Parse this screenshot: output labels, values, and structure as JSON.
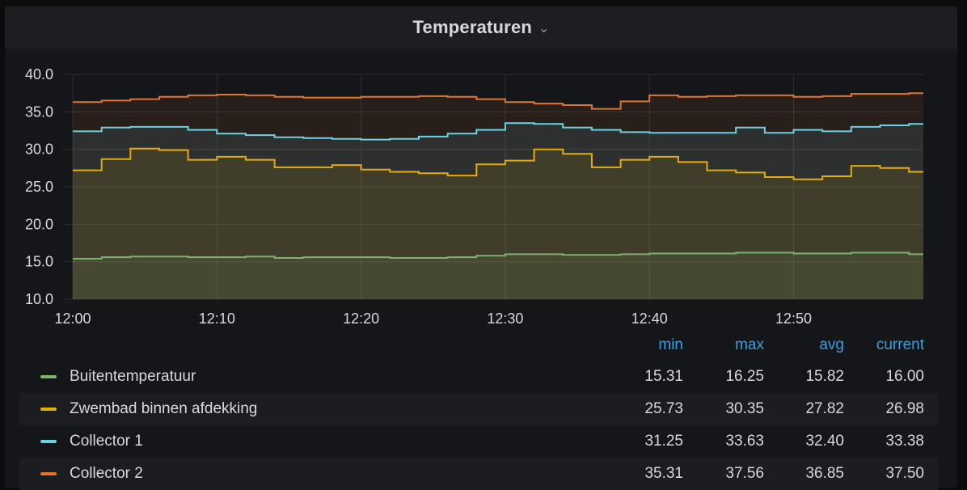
{
  "panel": {
    "title": "Temperaturen",
    "title_icon": "chevron-down-icon"
  },
  "chart_data": {
    "type": "area",
    "x": [
      "12:00",
      "12:02",
      "12:04",
      "12:06",
      "12:08",
      "12:10",
      "12:12",
      "12:14",
      "12:16",
      "12:18",
      "12:20",
      "12:22",
      "12:24",
      "12:26",
      "12:28",
      "12:30",
      "12:32",
      "12:34",
      "12:36",
      "12:38",
      "12:40",
      "12:42",
      "12:44",
      "12:46",
      "12:48",
      "12:50",
      "12:52",
      "12:54",
      "12:56",
      "12:58"
    ],
    "xticks": [
      "12:00",
      "12:10",
      "12:20",
      "12:30",
      "12:40",
      "12:50"
    ],
    "yticks": [
      "10.0",
      "15.0",
      "20.0",
      "25.0",
      "30.0",
      "35.0",
      "40.0"
    ],
    "ylim": [
      10,
      40
    ],
    "grid": true,
    "series": [
      {
        "name": "Collector 2",
        "color": "#e0752d",
        "values": [
          36.3,
          36.5,
          36.7,
          37.0,
          37.2,
          37.3,
          37.2,
          37.0,
          36.9,
          36.9,
          37.0,
          37.0,
          37.1,
          37.0,
          36.7,
          36.3,
          36.1,
          35.9,
          35.4,
          36.4,
          37.2,
          37.0,
          37.1,
          37.2,
          37.2,
          37.0,
          37.1,
          37.4,
          37.4,
          37.5
        ]
      },
      {
        "name": "Collector 1",
        "color": "#6ed0e0",
        "values": [
          32.4,
          32.9,
          33.0,
          33.0,
          32.6,
          32.1,
          31.9,
          31.6,
          31.5,
          31.4,
          31.3,
          31.4,
          31.7,
          32.1,
          32.6,
          33.5,
          33.4,
          32.9,
          32.6,
          32.3,
          32.2,
          32.2,
          32.2,
          32.9,
          32.2,
          32.6,
          32.4,
          33.0,
          33.2,
          33.4
        ]
      },
      {
        "name": "Zwembad binnen afdekking",
        "color": "#e5ac0e",
        "values": [
          27.2,
          28.7,
          30.1,
          29.9,
          28.6,
          29.0,
          28.6,
          27.6,
          27.6,
          27.9,
          27.3,
          27.0,
          26.8,
          26.5,
          28.0,
          28.5,
          30.0,
          29.4,
          27.6,
          28.6,
          29.0,
          28.3,
          27.2,
          26.9,
          26.3,
          26.0,
          26.4,
          27.8,
          27.5,
          27.0
        ]
      },
      {
        "name": "Buitentemperatuur",
        "color": "#7eb26d",
        "values": [
          15.4,
          15.6,
          15.7,
          15.7,
          15.6,
          15.6,
          15.7,
          15.5,
          15.6,
          15.6,
          15.6,
          15.5,
          15.5,
          15.6,
          15.8,
          16.0,
          16.0,
          15.9,
          15.9,
          16.0,
          16.1,
          16.1,
          16.1,
          16.2,
          16.2,
          16.1,
          16.1,
          16.2,
          16.2,
          16.0
        ]
      }
    ]
  },
  "legend": {
    "headers": {
      "min": "min",
      "max": "max",
      "avg": "avg",
      "current": "current"
    },
    "rows": [
      {
        "name": "Buitentemperatuur",
        "color": "#7eb26d",
        "min": "15.31",
        "max": "16.25",
        "avg": "15.82",
        "current": "16.00"
      },
      {
        "name": "Zwembad binnen afdekking",
        "color": "#e5ac0e",
        "min": "25.73",
        "max": "30.35",
        "avg": "27.82",
        "current": "26.98"
      },
      {
        "name": "Collector 1",
        "color": "#6ed0e0",
        "min": "31.25",
        "max": "33.63",
        "avg": "32.40",
        "current": "33.38"
      },
      {
        "name": "Collector 2",
        "color": "#e0752d",
        "min": "35.31",
        "max": "37.56",
        "avg": "36.85",
        "current": "37.50"
      }
    ]
  }
}
